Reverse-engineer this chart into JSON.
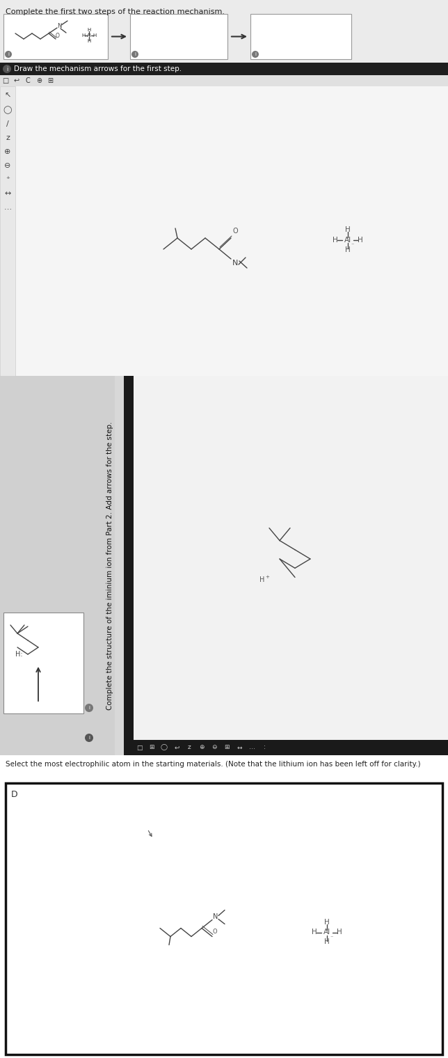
{
  "section1_title": "Complete the first two steps of the reaction mechanism.",
  "section2_title": "Draw the mechanism arrows for the first step.",
  "section3_title": "Complete the structure of the iminium ion from Part 2. Add arrows for the step.",
  "section4_title": "Select the most electrophilic atom in the starting materials. (Note that the lithium ion has been left off for clarity.)",
  "bg_top": "#e8e8e8",
  "bg_white": "#ffffff",
  "bg_canvas": "#f0f0f0",
  "bg_gray_panel": "#d4d4d4",
  "dark_bar": "#1e1e1e",
  "border_color": "#888888",
  "box_border": "#aaaaaa",
  "text_color": "#222222",
  "mol_color": "#555555",
  "fig_width": 6.44,
  "fig_height": 15.2
}
